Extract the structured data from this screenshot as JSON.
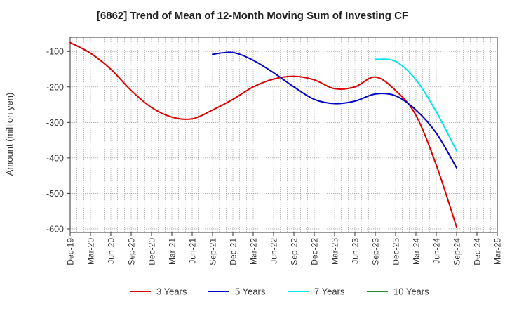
{
  "chart_data": {
    "type": "line",
    "title": "[6862]  Trend of Mean of 12-Month Moving Sum of Investing CF",
    "xlabel": "",
    "ylabel": "Amount (million yen)",
    "ylim": [
      -610,
      -60
    ],
    "yticks": [
      -100,
      -200,
      -300,
      -400,
      -500,
      -600
    ],
    "ytick_labels": [
      "-100",
      "-200",
      "-300",
      "-400",
      "-500",
      "-600"
    ],
    "x_tick_labels": [
      "Dec-19",
      "Mar-20",
      "Jun-20",
      "Sep-20",
      "Dec-20",
      "Mar-21",
      "Jun-21",
      "Sep-21",
      "Dec-21",
      "Mar-22",
      "Jun-22",
      "Sep-22",
      "Dec-22",
      "Mar-23",
      "Jun-23",
      "Sep-23",
      "Dec-23",
      "Mar-24",
      "Jun-24",
      "Sep-24",
      "Dec-24",
      "Mar-25"
    ],
    "x": [
      "Dec-19",
      "Mar-20",
      "Jun-20",
      "Sep-20",
      "Dec-20",
      "Mar-21",
      "Jun-21",
      "Sep-21",
      "Dec-21",
      "Mar-22",
      "Jun-22",
      "Sep-22",
      "Dec-22",
      "Mar-23",
      "Jun-23",
      "Sep-23",
      "Dec-23",
      "Mar-24",
      "Jun-24",
      "Sep-24"
    ],
    "grid": true,
    "legend_position": "bottom",
    "series": [
      {
        "name": "3 Years",
        "color": "#dd0000",
        "values": [
          -75,
          -105,
          -150,
          -210,
          -258,
          -285,
          -290,
          -265,
          -235,
          -200,
          -178,
          -170,
          -180,
          -205,
          -200,
          -172,
          -210,
          -280,
          -420,
          -595
        ]
      },
      {
        "name": "5 Years",
        "color": "#0000cc",
        "values": [
          null,
          null,
          null,
          null,
          null,
          null,
          null,
          -108,
          -103,
          -125,
          -160,
          -200,
          -235,
          -247,
          -240,
          -220,
          -225,
          -265,
          -330,
          -428
        ]
      },
      {
        "name": "7 Years",
        "color": "#00e5ee",
        "values": [
          null,
          null,
          null,
          null,
          null,
          null,
          null,
          null,
          null,
          null,
          null,
          null,
          null,
          null,
          null,
          -122,
          -128,
          -180,
          -270,
          -380
        ]
      },
      {
        "name": "10 Years",
        "color": "#228b22",
        "values": [
          null,
          null,
          null,
          null,
          null,
          null,
          null,
          null,
          null,
          null,
          null,
          null,
          null,
          null,
          null,
          null,
          null,
          null,
          null,
          null
        ]
      }
    ]
  }
}
